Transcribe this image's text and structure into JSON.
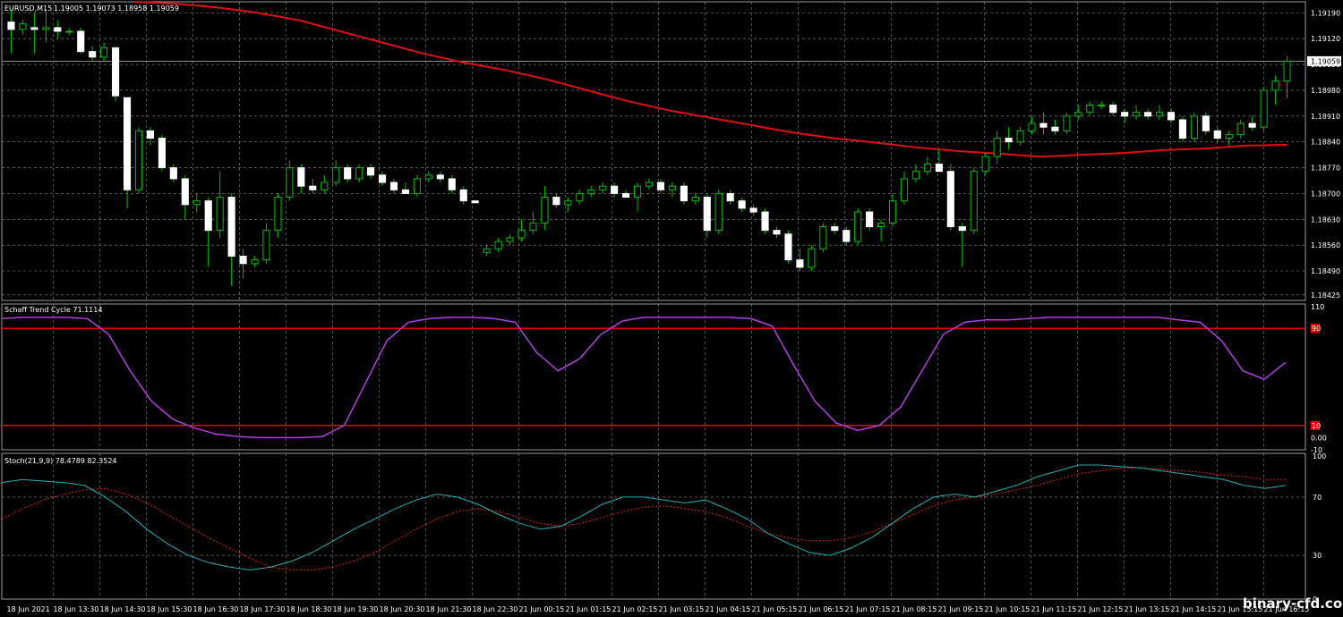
{
  "colors": {
    "background": "#000000",
    "grid": "#8a8a8a",
    "bull_candle": "#000000",
    "bull_outline": "#00c000",
    "bear_candle": "#ffffff",
    "wick": "#00c000",
    "ma_line": "#e01010",
    "stc_line": "#b040e0",
    "stc_levels": "#ff0000",
    "stoch_main": "#20b0b0",
    "stoch_signal": "#e02020",
    "text": "#ffffff"
  },
  "watermark": "binary-cfd.com",
  "chart_data": [
    {
      "type": "candlestick",
      "title": "EURUSD,M15",
      "ohlc_header": "1.19005 1.19073 1.18958 1.19059",
      "current_price_label": "1.19059",
      "current_price": 1.19059,
      "ylim": [
        1.1841,
        1.1922
      ],
      "y_ticks": [
        "1.19190",
        "1.19120",
        "1.19050",
        "1.18980",
        "1.18910",
        "1.18840",
        "1.18770",
        "1.18700",
        "1.18630",
        "1.18560",
        "1.18490",
        "1.18425"
      ],
      "y_tick_values": [
        1.1919,
        1.1912,
        1.1905,
        1.1898,
        1.1891,
        1.1884,
        1.1877,
        1.187,
        1.1863,
        1.1856,
        1.1849,
        1.18425
      ],
      "x_ticks": [
        "18 Jun 2021",
        "18 Jun 13:30",
        "18 Jun 14:30",
        "18 Jun 15:30",
        "18 Jun 16:30",
        "18 Jun 17:30",
        "18 Jun 18:30",
        "18 Jun 19:30",
        "18 Jun 20:30",
        "18 Jun 21:30",
        "18 Jun 22:30",
        "21 Jun 00:15",
        "21 Jun 01:15",
        "21 Jun 02:15",
        "21 Jun 03:15",
        "21 Jun 04:15",
        "21 Jun 05:15",
        "21 Jun 06:15",
        "21 Jun 07:15",
        "21 Jun 08:15",
        "21 Jun 09:15",
        "21 Jun 10:15",
        "21 Jun 11:15",
        "21 Jun 12:15",
        "21 Jun 13:15",
        "21 Jun 14:15",
        "21 Jun 15:15",
        "21 Jun 16:15"
      ],
      "candles": [
        {
          "o": 1.19165,
          "h": 1.192,
          "l": 1.1908,
          "c": 1.19145
        },
        {
          "o": 1.19145,
          "h": 1.1917,
          "l": 1.1913,
          "c": 1.1916
        },
        {
          "o": 1.1915,
          "h": 1.1919,
          "l": 1.1908,
          "c": 1.19145
        },
        {
          "o": 1.19145,
          "h": 1.192,
          "l": 1.1911,
          "c": 1.1915
        },
        {
          "o": 1.1915,
          "h": 1.1917,
          "l": 1.1912,
          "c": 1.1914
        },
        {
          "o": 1.1914,
          "h": 1.1915,
          "l": 1.1913,
          "c": 1.1914
        },
        {
          "o": 1.1914,
          "h": 1.1915,
          "l": 1.1908,
          "c": 1.19085
        },
        {
          "o": 1.19085,
          "h": 1.191,
          "l": 1.1906,
          "c": 1.1907
        },
        {
          "o": 1.1907,
          "h": 1.1911,
          "l": 1.1906,
          "c": 1.19095
        },
        {
          "o": 1.19095,
          "h": 1.191,
          "l": 1.1895,
          "c": 1.18965
        },
        {
          "o": 1.1896,
          "h": 1.1896,
          "l": 1.1866,
          "c": 1.1871
        },
        {
          "o": 1.1871,
          "h": 1.1888,
          "l": 1.187,
          "c": 1.1887
        },
        {
          "o": 1.1887,
          "h": 1.1888,
          "l": 1.1883,
          "c": 1.1885
        },
        {
          "o": 1.1885,
          "h": 1.1886,
          "l": 1.1876,
          "c": 1.1877
        },
        {
          "o": 1.1877,
          "h": 1.1878,
          "l": 1.1873,
          "c": 1.1874
        },
        {
          "o": 1.1874,
          "h": 1.1875,
          "l": 1.1863,
          "c": 1.1867
        },
        {
          "o": 1.1867,
          "h": 1.187,
          "l": 1.1865,
          "c": 1.1868
        },
        {
          "o": 1.1868,
          "h": 1.1869,
          "l": 1.185,
          "c": 1.186
        },
        {
          "o": 1.186,
          "h": 1.1876,
          "l": 1.1858,
          "c": 1.1869
        },
        {
          "o": 1.1869,
          "h": 1.187,
          "l": 1.1845,
          "c": 1.1853
        },
        {
          "o": 1.1853,
          "h": 1.1855,
          "l": 1.1847,
          "c": 1.1851
        },
        {
          "o": 1.1851,
          "h": 1.1853,
          "l": 1.185,
          "c": 1.1852
        },
        {
          "o": 1.1852,
          "h": 1.1862,
          "l": 1.1851,
          "c": 1.186
        },
        {
          "o": 1.186,
          "h": 1.187,
          "l": 1.1858,
          "c": 1.1869
        },
        {
          "o": 1.1869,
          "h": 1.1879,
          "l": 1.1868,
          "c": 1.1877
        },
        {
          "o": 1.1877,
          "h": 1.1878,
          "l": 1.187,
          "c": 1.1872
        },
        {
          "o": 1.1872,
          "h": 1.1874,
          "l": 1.187,
          "c": 1.1871
        },
        {
          "o": 1.1871,
          "h": 1.1875,
          "l": 1.187,
          "c": 1.1873
        },
        {
          "o": 1.1873,
          "h": 1.1879,
          "l": 1.1872,
          "c": 1.1877
        },
        {
          "o": 1.1877,
          "h": 1.1878,
          "l": 1.1873,
          "c": 1.1874
        },
        {
          "o": 1.1874,
          "h": 1.1878,
          "l": 1.1873,
          "c": 1.1877
        },
        {
          "o": 1.1877,
          "h": 1.1878,
          "l": 1.1874,
          "c": 1.1875
        },
        {
          "o": 1.1875,
          "h": 1.1876,
          "l": 1.1872,
          "c": 1.1873
        },
        {
          "o": 1.1873,
          "h": 1.1874,
          "l": 1.187,
          "c": 1.1871
        },
        {
          "o": 1.1871,
          "h": 1.1873,
          "l": 1.187,
          "c": 1.187
        },
        {
          "o": 1.187,
          "h": 1.1875,
          "l": 1.1869,
          "c": 1.1874
        },
        {
          "o": 1.1874,
          "h": 1.1876,
          "l": 1.1873,
          "c": 1.1875
        },
        {
          "o": 1.1875,
          "h": 1.1876,
          "l": 1.1873,
          "c": 1.1874
        },
        {
          "o": 1.1874,
          "h": 1.1875,
          "l": 1.187,
          "c": 1.1871
        },
        {
          "o": 1.1871,
          "h": 1.1872,
          "l": 1.1867,
          "c": 1.1868
        },
        {
          "o": 1.1868,
          "h": 1.1868,
          "l": 1.18675,
          "c": 1.18675
        },
        {
          "o": 1.1854,
          "h": 1.1856,
          "l": 1.1853,
          "c": 1.1855
        },
        {
          "o": 1.1855,
          "h": 1.1858,
          "l": 1.1854,
          "c": 1.1857
        },
        {
          "o": 1.1857,
          "h": 1.1859,
          "l": 1.1856,
          "c": 1.1858
        },
        {
          "o": 1.1858,
          "h": 1.1863,
          "l": 1.1857,
          "c": 1.186
        },
        {
          "o": 1.186,
          "h": 1.1865,
          "l": 1.1859,
          "c": 1.1862
        },
        {
          "o": 1.1862,
          "h": 1.1872,
          "l": 1.186,
          "c": 1.1869
        },
        {
          "o": 1.1869,
          "h": 1.187,
          "l": 1.1866,
          "c": 1.1867
        },
        {
          "o": 1.1867,
          "h": 1.1869,
          "l": 1.1865,
          "c": 1.1868
        },
        {
          "o": 1.1868,
          "h": 1.1871,
          "l": 1.1867,
          "c": 1.187
        },
        {
          "o": 1.187,
          "h": 1.1872,
          "l": 1.1869,
          "c": 1.1871
        },
        {
          "o": 1.1871,
          "h": 1.1873,
          "l": 1.187,
          "c": 1.1872
        },
        {
          "o": 1.1872,
          "h": 1.1873,
          "l": 1.1869,
          "c": 1.187
        },
        {
          "o": 1.187,
          "h": 1.1871,
          "l": 1.1869,
          "c": 1.1869
        },
        {
          "o": 1.1869,
          "h": 1.1873,
          "l": 1.1865,
          "c": 1.1872
        },
        {
          "o": 1.1872,
          "h": 1.1874,
          "l": 1.1871,
          "c": 1.1873
        },
        {
          "o": 1.1873,
          "h": 1.1874,
          "l": 1.187,
          "c": 1.1871
        },
        {
          "o": 1.1871,
          "h": 1.1873,
          "l": 1.1869,
          "c": 1.1872
        },
        {
          "o": 1.1872,
          "h": 1.1873,
          "l": 1.1867,
          "c": 1.1868
        },
        {
          "o": 1.1868,
          "h": 1.187,
          "l": 1.1867,
          "c": 1.1869
        },
        {
          "o": 1.1869,
          "h": 1.187,
          "l": 1.1858,
          "c": 1.186
        },
        {
          "o": 1.186,
          "h": 1.1871,
          "l": 1.1859,
          "c": 1.187
        },
        {
          "o": 1.187,
          "h": 1.1871,
          "l": 1.1867,
          "c": 1.1868
        },
        {
          "o": 1.1868,
          "h": 1.1869,
          "l": 1.1865,
          "c": 1.1866
        },
        {
          "o": 1.1866,
          "h": 1.1867,
          "l": 1.1864,
          "c": 1.1865
        },
        {
          "o": 1.1865,
          "h": 1.1866,
          "l": 1.1859,
          "c": 1.186
        },
        {
          "o": 1.186,
          "h": 1.1861,
          "l": 1.1858,
          "c": 1.1859
        },
        {
          "o": 1.1859,
          "h": 1.186,
          "l": 1.1851,
          "c": 1.1852
        },
        {
          "o": 1.1852,
          "h": 1.1855,
          "l": 1.1849,
          "c": 1.185
        },
        {
          "o": 1.185,
          "h": 1.1856,
          "l": 1.1849,
          "c": 1.1855
        },
        {
          "o": 1.1855,
          "h": 1.1862,
          "l": 1.1854,
          "c": 1.1861
        },
        {
          "o": 1.1861,
          "h": 1.1862,
          "l": 1.1859,
          "c": 1.186
        },
        {
          "o": 1.186,
          "h": 1.1861,
          "l": 1.1856,
          "c": 1.1857
        },
        {
          "o": 1.1857,
          "h": 1.1866,
          "l": 1.1856,
          "c": 1.1865
        },
        {
          "o": 1.1865,
          "h": 1.1866,
          "l": 1.186,
          "c": 1.1861
        },
        {
          "o": 1.1861,
          "h": 1.1863,
          "l": 1.1857,
          "c": 1.1862
        },
        {
          "o": 1.1862,
          "h": 1.187,
          "l": 1.1861,
          "c": 1.1868
        },
        {
          "o": 1.1868,
          "h": 1.1876,
          "l": 1.1867,
          "c": 1.1874
        },
        {
          "o": 1.1874,
          "h": 1.1878,
          "l": 1.1873,
          "c": 1.1876
        },
        {
          "o": 1.1876,
          "h": 1.188,
          "l": 1.1875,
          "c": 1.1878
        },
        {
          "o": 1.1878,
          "h": 1.1882,
          "l": 1.1876,
          "c": 1.1876
        },
        {
          "o": 1.1876,
          "h": 1.1878,
          "l": 1.186,
          "c": 1.1861
        },
        {
          "o": 1.1861,
          "h": 1.1862,
          "l": 1.185,
          "c": 1.186
        },
        {
          "o": 1.186,
          "h": 1.1877,
          "l": 1.1859,
          "c": 1.1876
        },
        {
          "o": 1.1876,
          "h": 1.1881,
          "l": 1.1875,
          "c": 1.188
        },
        {
          "o": 1.188,
          "h": 1.1887,
          "l": 1.1878,
          "c": 1.1885
        },
        {
          "o": 1.1885,
          "h": 1.1888,
          "l": 1.1882,
          "c": 1.1884
        },
        {
          "o": 1.1884,
          "h": 1.1888,
          "l": 1.1883,
          "c": 1.1887
        },
        {
          "o": 1.1887,
          "h": 1.1891,
          "l": 1.1886,
          "c": 1.1889
        },
        {
          "o": 1.1889,
          "h": 1.1892,
          "l": 1.1886,
          "c": 1.1888
        },
        {
          "o": 1.1888,
          "h": 1.189,
          "l": 1.1886,
          "c": 1.1887
        },
        {
          "o": 1.1887,
          "h": 1.1892,
          "l": 1.1886,
          "c": 1.1891
        },
        {
          "o": 1.1891,
          "h": 1.1894,
          "l": 1.189,
          "c": 1.1892
        },
        {
          "o": 1.1892,
          "h": 1.1895,
          "l": 1.1891,
          "c": 1.1894
        },
        {
          "o": 1.1894,
          "h": 1.1895,
          "l": 1.1893,
          "c": 1.1894
        },
        {
          "o": 1.1894,
          "h": 1.1895,
          "l": 1.1891,
          "c": 1.1892
        },
        {
          "o": 1.1892,
          "h": 1.1893,
          "l": 1.1889,
          "c": 1.1891
        },
        {
          "o": 1.1891,
          "h": 1.1894,
          "l": 1.189,
          "c": 1.1892
        },
        {
          "o": 1.1892,
          "h": 1.1893,
          "l": 1.189,
          "c": 1.1891
        },
        {
          "o": 1.1891,
          "h": 1.1894,
          "l": 1.189,
          "c": 1.1892
        },
        {
          "o": 1.1892,
          "h": 1.1893,
          "l": 1.1889,
          "c": 1.189
        },
        {
          "o": 1.189,
          "h": 1.1891,
          "l": 1.1884,
          "c": 1.1885
        },
        {
          "o": 1.1885,
          "h": 1.1892,
          "l": 1.1884,
          "c": 1.1891
        },
        {
          "o": 1.1891,
          "h": 1.1892,
          "l": 1.1886,
          "c": 1.1887
        },
        {
          "o": 1.1887,
          "h": 1.1888,
          "l": 1.1884,
          "c": 1.1885
        },
        {
          "o": 1.1885,
          "h": 1.1887,
          "l": 1.1883,
          "c": 1.1886
        },
        {
          "o": 1.1886,
          "h": 1.189,
          "l": 1.1885,
          "c": 1.1889
        },
        {
          "o": 1.1889,
          "h": 1.1891,
          "l": 1.1887,
          "c": 1.1888
        },
        {
          "o": 1.1888,
          "h": 1.1899,
          "l": 1.1887,
          "c": 1.1898
        },
        {
          "o": 1.1898,
          "h": 1.1902,
          "l": 1.1894,
          "c": 1.19005
        },
        {
          "o": 1.19005,
          "h": 1.19073,
          "l": 1.18958,
          "c": 1.19059
        }
      ],
      "ma_values": [
        1.1922,
        1.19215,
        1.19205,
        1.1919,
        1.1917,
        1.1914,
        1.1911,
        1.1908,
        1.19055,
        1.19035,
        1.1901,
        1.1898,
        1.1895,
        1.18925,
        1.18905,
        1.18885,
        1.18865,
        1.1885,
        1.18838,
        1.18825,
        1.18815,
        1.18808,
        1.188,
        1.18805,
        1.1881,
        1.18818,
        1.18822,
        1.1883,
        1.18832
      ],
      "ma_label": ""
    },
    {
      "type": "line",
      "title": "Schaff Trend Cycle 71.1114",
      "ylim": [
        -10,
        110
      ],
      "y_ticks": [
        "110",
        "0.00",
        "-10"
      ],
      "levels": [
        {
          "label": "90",
          "value": 90
        },
        {
          "label": "10",
          "value": 10
        }
      ],
      "series": [
        {
          "name": "",
          "values": [
            98,
            99,
            99,
            99,
            98,
            85,
            55,
            30,
            15,
            8,
            3,
            1,
            0,
            0,
            0,
            1,
            10,
            45,
            80,
            95,
            98,
            99,
            99,
            98,
            95,
            70,
            55,
            65,
            85,
            96,
            99,
            99,
            99,
            99,
            99,
            98,
            92,
            60,
            30,
            12,
            6,
            10,
            25,
            55,
            85,
            95,
            97,
            97,
            98,
            99,
            99,
            99,
            99,
            99,
            99,
            97,
            95,
            80,
            55,
            48,
            62
          ]
        }
      ]
    },
    {
      "type": "line",
      "title": "Stoch(21,9,9) 78.4789 82.3524",
      "ylim": [
        0,
        100
      ],
      "y_ticks": [
        "100",
        "70",
        "30",
        "0"
      ],
      "series": [
        {
          "name": "",
          "values": [
            80,
            82,
            81,
            80,
            78,
            70,
            60,
            48,
            38,
            30,
            25,
            22,
            20,
            22,
            26,
            32,
            40,
            48,
            55,
            62,
            68,
            72,
            70,
            65,
            58,
            52,
            48,
            50,
            57,
            65,
            70,
            70,
            68,
            66,
            68,
            62,
            55,
            45,
            38,
            32,
            30,
            35,
            42,
            52,
            62,
            70,
            72,
            70,
            74,
            78,
            84,
            88,
            92,
            92,
            91,
            90,
            88,
            86,
            84,
            82,
            78,
            76,
            78
          ]
        },
        {
          "name": "",
          "values": [
            55,
            62,
            68,
            72,
            75,
            76,
            72,
            66,
            58,
            50,
            42,
            35,
            28,
            22,
            20,
            20,
            22,
            26,
            32,
            40,
            48,
            55,
            60,
            62,
            60,
            56,
            52,
            50,
            52,
            56,
            60,
            63,
            64,
            62,
            60,
            56,
            50,
            45,
            42,
            40,
            40,
            42,
            46,
            52,
            58,
            64,
            68,
            70,
            72,
            75,
            78,
            82,
            86,
            88,
            90,
            90,
            89,
            88,
            87,
            85,
            84,
            82,
            82
          ]
        }
      ]
    }
  ]
}
